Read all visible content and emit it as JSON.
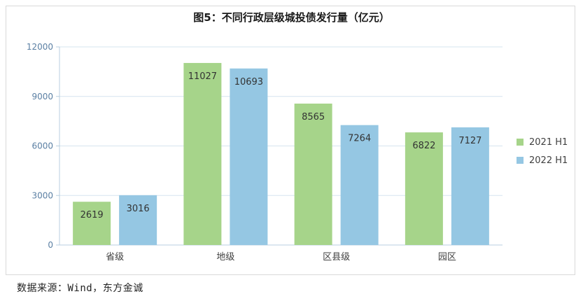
{
  "source": "数据来源：Wind，东方金诚",
  "chart_data": {
    "type": "bar",
    "title": "图5：不同行政层级城投债发行量（亿元）",
    "categories": [
      "省级",
      "地级",
      "区县级",
      "园区"
    ],
    "series": [
      {
        "name": "2021 H1",
        "color": "#a6d48a",
        "values": [
          2619,
          11027,
          8565,
          6822
        ]
      },
      {
        "name": "2022 H1",
        "color": "#95c7e3",
        "values": [
          3016,
          10693,
          7264,
          7127
        ]
      }
    ],
    "ylim": [
      0,
      12000
    ],
    "yticks": [
      0,
      3000,
      6000,
      9000,
      12000
    ],
    "grid": true,
    "legend": "right"
  }
}
